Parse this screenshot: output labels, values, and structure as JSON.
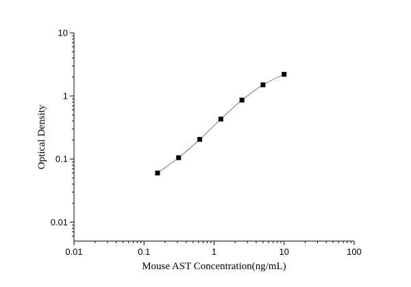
{
  "chart_data": {
    "type": "scatter",
    "title": "",
    "xlabel": "Mouse AST Concentration(ng/mL)",
    "ylabel": "Optical Density",
    "xscale": "log",
    "yscale": "log",
    "xlim": [
      0.01,
      100
    ],
    "ylim": [
      0.005,
      10
    ],
    "x_ticks": [
      "0.01",
      "0.1",
      "1",
      "10",
      "100"
    ],
    "y_ticks": [
      "0.01",
      "0.1",
      "1",
      "10"
    ],
    "grid": false,
    "legend": "none",
    "marker": "square",
    "fit_curve": true,
    "colors": {
      "points": "#000000",
      "curve": "#555555",
      "axes": "#000000"
    },
    "series": [
      {
        "x": [
          0.156,
          0.312,
          0.625,
          1.25,
          2.5,
          5,
          10
        ],
        "y": [
          0.06,
          0.105,
          0.205,
          0.43,
          0.86,
          1.5,
          2.2
        ]
      }
    ]
  }
}
